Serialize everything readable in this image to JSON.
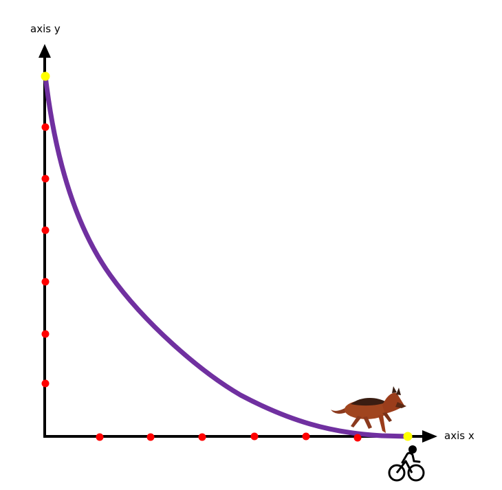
{
  "labels": {
    "y_axis": "axis y",
    "x_axis": "axis x"
  },
  "figures": {
    "dog": "dog-icon",
    "cyclist": "bicycle-rider-icon"
  },
  "colors": {
    "axis": "#000000",
    "curve": "#7030a0",
    "tick_dot": "#ff0000",
    "endpoint_dot": "#ffff00"
  },
  "x_dot_count": 6,
  "y_dot_count": 6
}
